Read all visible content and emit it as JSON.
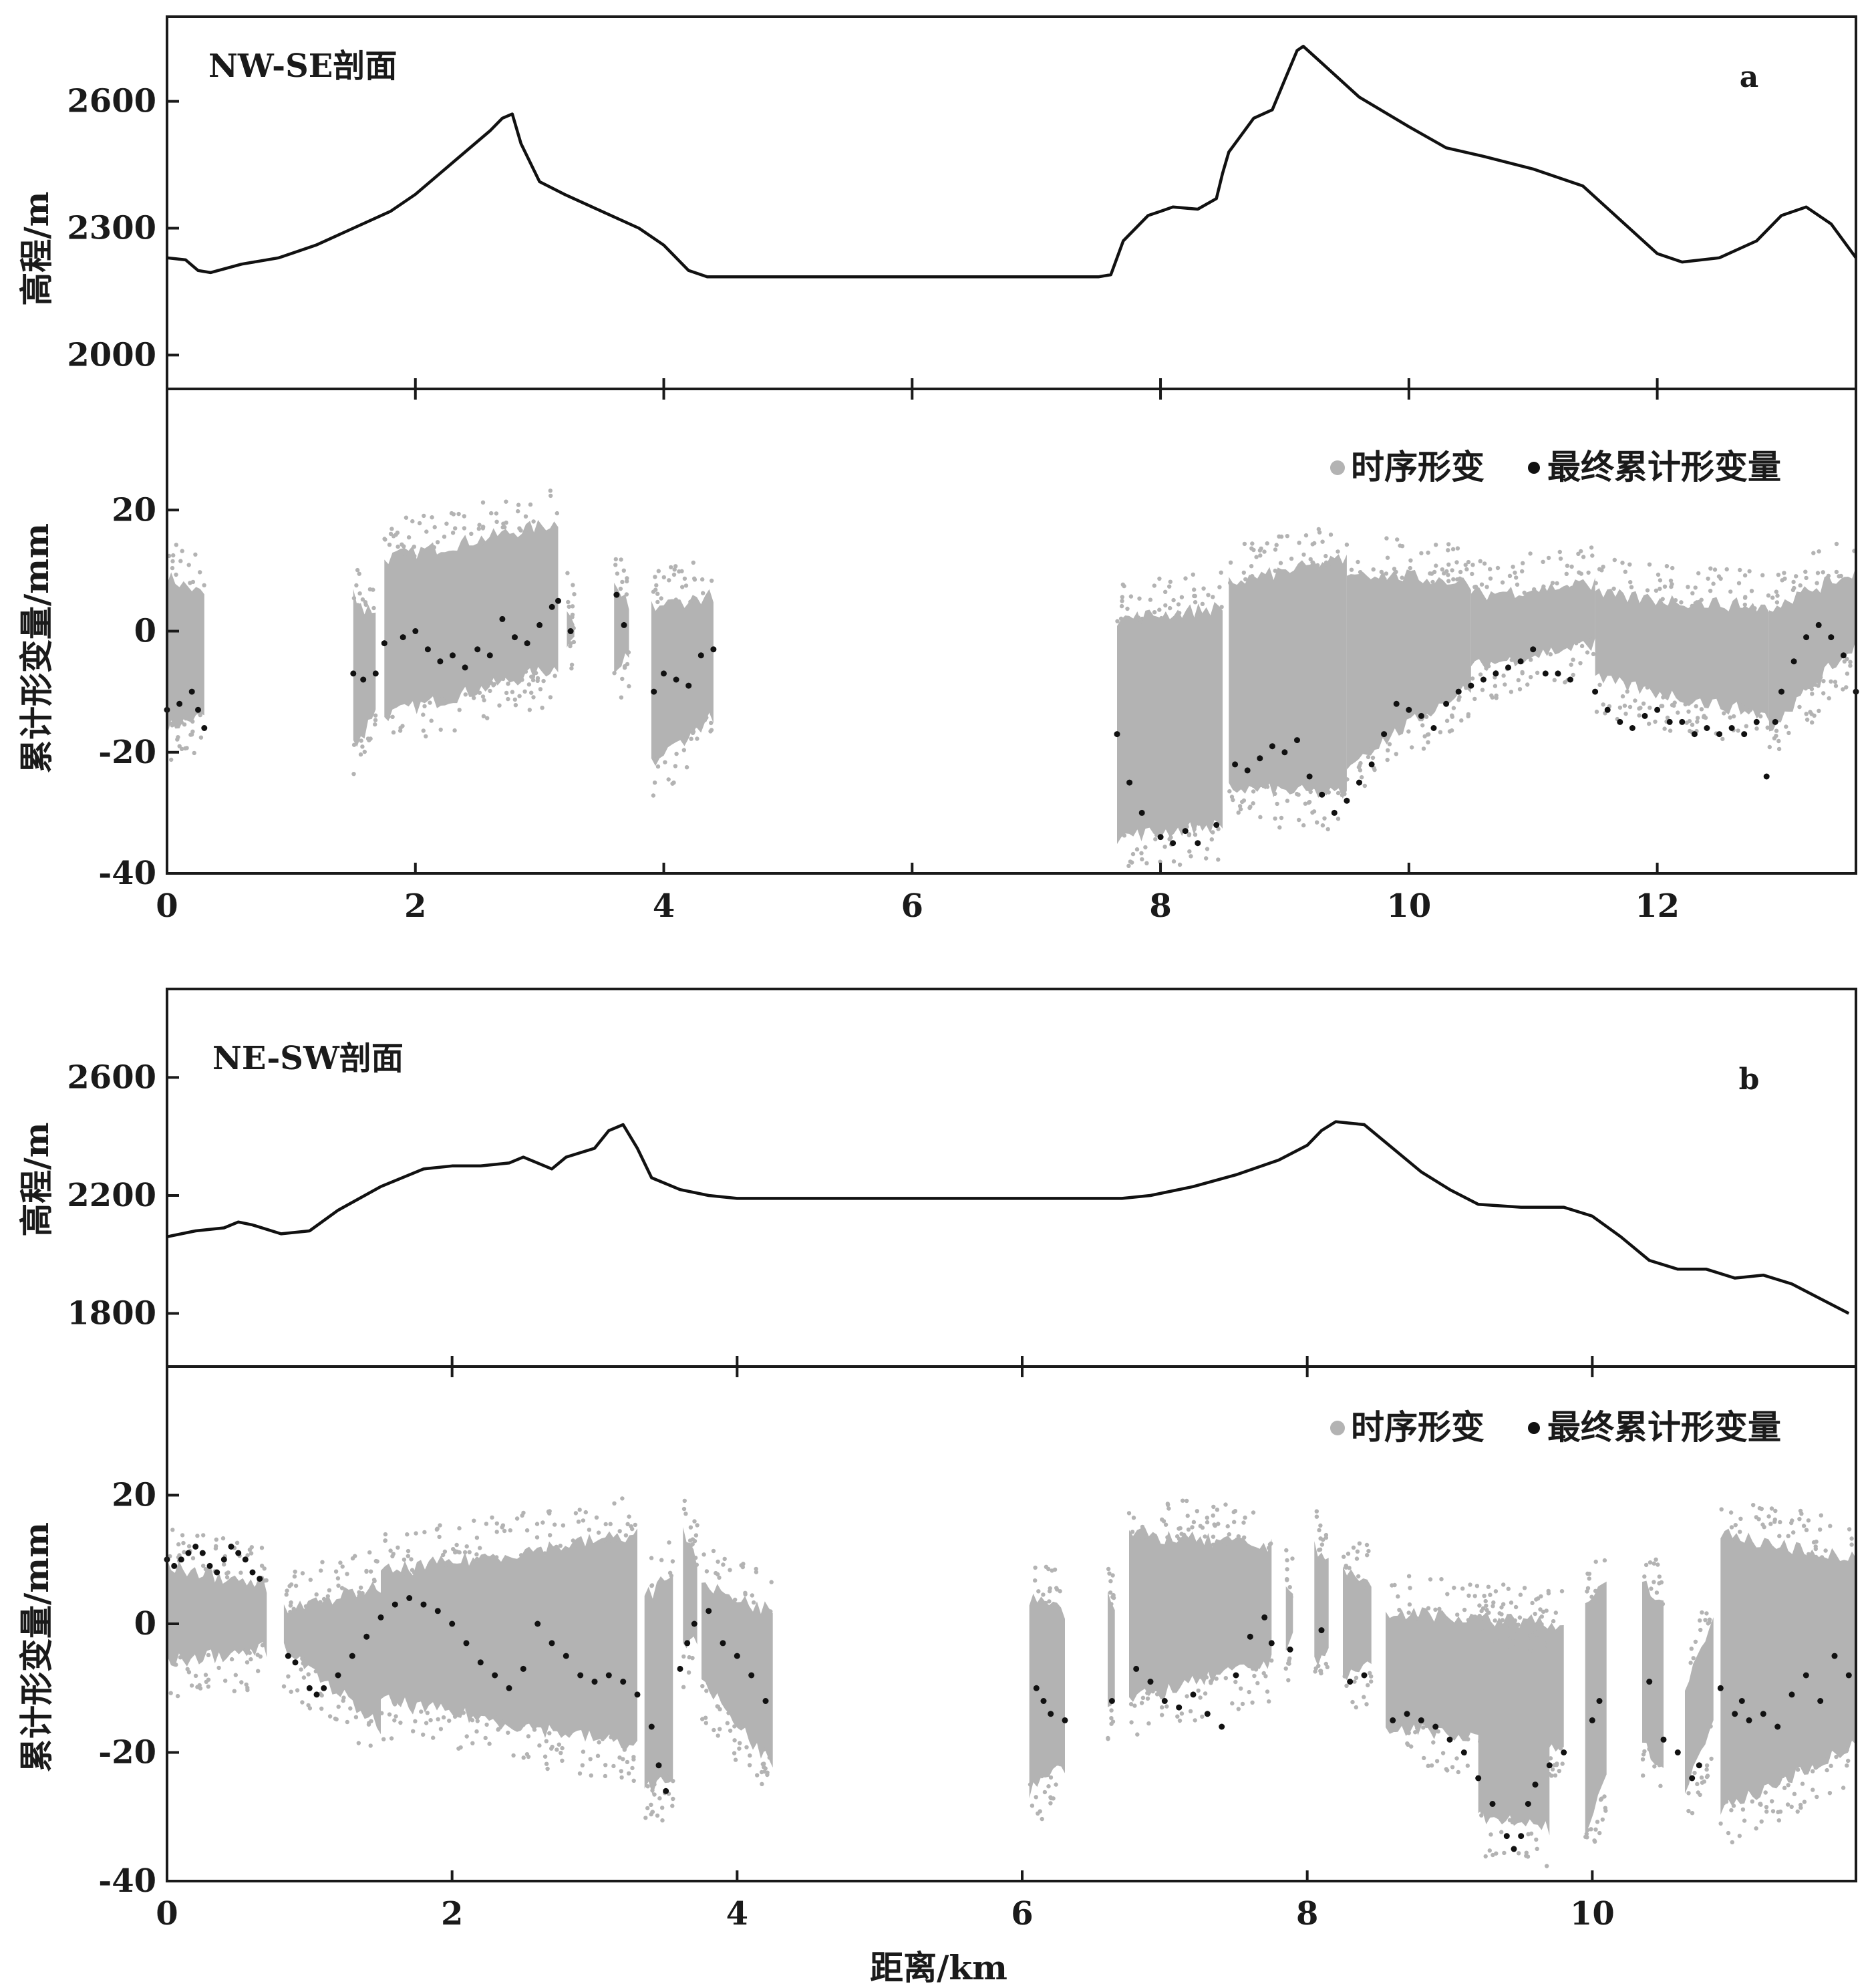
{
  "xlabel": "距离/km",
  "colors": {
    "ts": "#b3b3b3",
    "final": "#111111",
    "line": "#111111"
  },
  "chart_data": [
    {
      "id": "a",
      "letter": "a",
      "title": "NW-SE剖面",
      "type": "line+scatter",
      "xlim": [
        0,
        13.6
      ],
      "xticks": [
        0,
        2,
        4,
        6,
        8,
        10,
        12
      ],
      "elevation": {
        "ylabel": "高程/m",
        "ylim": [
          1920,
          2800
        ],
        "yticks": [
          2000,
          2300,
          2600
        ],
        "x": [
          0,
          0.15,
          0.25,
          0.35,
          0.6,
          0.9,
          1.2,
          1.5,
          1.8,
          2.0,
          2.2,
          2.4,
          2.6,
          2.7,
          2.78,
          2.85,
          3.0,
          3.2,
          3.5,
          3.8,
          4.0,
          4.2,
          4.35,
          4.5,
          6.0,
          7.5,
          7.6,
          7.7,
          7.8,
          7.9,
          8.0,
          8.1,
          8.3,
          8.45,
          8.5,
          8.55,
          8.6,
          8.75,
          8.9,
          9.0,
          9.1,
          9.15,
          9.3,
          9.6,
          10.0,
          10.3,
          10.6,
          11.0,
          11.4,
          11.7,
          12.0,
          12.2,
          12.5,
          12.8,
          13.0,
          13.2,
          13.4,
          13.6
        ],
        "y": [
          2230,
          2225,
          2200,
          2195,
          2215,
          2230,
          2260,
          2300,
          2340,
          2380,
          2430,
          2480,
          2530,
          2560,
          2570,
          2500,
          2410,
          2380,
          2340,
          2300,
          2260,
          2200,
          2185,
          2185,
          2185,
          2185,
          2190,
          2270,
          2300,
          2330,
          2340,
          2350,
          2345,
          2370,
          2430,
          2480,
          2500,
          2560,
          2580,
          2650,
          2720,
          2730,
          2690,
          2610,
          2540,
          2490,
          2470,
          2440,
          2400,
          2320,
          2240,
          2220,
          2230,
          2270,
          2330,
          2350,
          2310,
          2230
        ]
      },
      "deformation": {
        "ylabel": "累计形变量/mm",
        "ylim": [
          -40,
          40
        ],
        "yticks": [
          -40,
          -20,
          0,
          20
        ],
        "legend": {
          "ts_label": "时序形变",
          "final_label": "最终累计形变量"
        },
        "ts_segments": [
          {
            "x": [
              0,
              0.3
            ],
            "ymin": [
              -22,
              -20
            ],
            "ymax": [
              15,
              12
            ]
          },
          {
            "x": [
              1.5,
              1.68
            ],
            "ymin": [
              -25,
              -20
            ],
            "ymax": [
              12,
              8
            ]
          },
          {
            "x": [
              1.75,
              3.15
            ],
            "ymin": [
              -20,
              -12
            ],
            "ymax": [
              18,
              24
            ]
          },
          {
            "x": [
              3.22,
              3.28
            ],
            "ymin": [
              -8,
              -6
            ],
            "ymax": [
              10,
              8
            ]
          },
          {
            "x": [
              3.6,
              3.72
            ],
            "ymin": [
              -12,
              -10
            ],
            "ymax": [
              15,
              10
            ]
          },
          {
            "x": [
              3.9,
              4.4
            ],
            "ymin": [
              -28,
              -20
            ],
            "ymax": [
              10,
              12
            ]
          },
          {
            "x": [
              7.65,
              8.5
            ],
            "ymin": [
              -40,
              -38
            ],
            "ymax": [
              8,
              10
            ]
          },
          {
            "x": [
              8.55,
              9.5
            ],
            "ymin": [
              -32,
              -33
            ],
            "ymax": [
              14,
              18
            ]
          },
          {
            "x": [
              9.5,
              10.5
            ],
            "ymin": [
              -28,
              -15
            ],
            "ymax": [
              16,
              14
            ]
          },
          {
            "x": [
              10.5,
              11.5
            ],
            "ymin": [
              -12,
              -8
            ],
            "ymax": [
              12,
              14
            ]
          },
          {
            "x": [
              11.5,
              12.9
            ],
            "ymin": [
              -14,
              -20
            ],
            "ymax": [
              12,
              10
            ]
          },
          {
            "x": [
              12.9,
              13.6
            ],
            "ymin": [
              -22,
              -8
            ],
            "ymax": [
              10,
              16
            ]
          }
        ],
        "final": {
          "x": [
            0,
            0.1,
            0.2,
            0.25,
            0.3,
            1.5,
            1.58,
            1.68,
            1.75,
            1.9,
            2.0,
            2.1,
            2.2,
            2.3,
            2.4,
            2.5,
            2.6,
            2.7,
            2.8,
            2.9,
            3.0,
            3.1,
            3.15,
            3.25,
            3.62,
            3.68,
            3.92,
            4.0,
            4.1,
            4.2,
            4.3,
            4.4,
            7.65,
            7.75,
            7.85,
            8.0,
            8.1,
            8.2,
            8.3,
            8.45,
            8.6,
            8.7,
            8.8,
            8.9,
            9.0,
            9.1,
            9.2,
            9.3,
            9.4,
            9.5,
            9.6,
            9.7,
            9.8,
            9.9,
            10.0,
            10.1,
            10.2,
            10.3,
            10.4,
            10.5,
            10.6,
            10.7,
            10.8,
            10.9,
            11.0,
            11.1,
            11.2,
            11.3,
            11.5,
            11.6,
            11.7,
            11.8,
            11.9,
            12.0,
            12.1,
            12.2,
            12.3,
            12.4,
            12.5,
            12.6,
            12.7,
            12.8,
            12.88,
            12.95,
            13.0,
            13.1,
            13.2,
            13.3,
            13.4,
            13.5,
            13.6
          ],
          "y": [
            -13,
            -12,
            -10,
            -13,
            -16,
            -7,
            -8,
            -7,
            -2,
            -1,
            0,
            -3,
            -5,
            -4,
            -6,
            -3,
            -4,
            2,
            -1,
            -2,
            1,
            4,
            5,
            0,
            6,
            1,
            -10,
            -7,
            -8,
            -9,
            -4,
            -3,
            -17,
            -25,
            -30,
            -34,
            -35,
            -33,
            -35,
            -32,
            -22,
            -23,
            -21,
            -19,
            -20,
            -18,
            -24,
            -27,
            -30,
            -28,
            -25,
            -22,
            -17,
            -12,
            -13,
            -14,
            -16,
            -12,
            -10,
            -9,
            -8,
            -7,
            -6,
            -5,
            -3,
            -7,
            -7,
            -8,
            -10,
            -13,
            -15,
            -16,
            -14,
            -13,
            -15,
            -15,
            -17,
            -16,
            -17,
            -16,
            -17,
            -15,
            -24,
            -15,
            -10,
            -5,
            -1,
            1,
            -1,
            -4,
            -10
          ]
        }
      }
    },
    {
      "id": "b",
      "letter": "b",
      "title": "NE-SW剖面",
      "type": "line+scatter",
      "xlim": [
        0,
        11.85
      ],
      "xticks": [
        0,
        2,
        4,
        6,
        8,
        10
      ],
      "elevation": {
        "ylabel": "高程/m",
        "ylim": [
          1620,
          2900
        ],
        "yticks": [
          1800,
          2200,
          2600
        ],
        "x": [
          0,
          0.2,
          0.4,
          0.5,
          0.6,
          0.8,
          1.0,
          1.2,
          1.5,
          1.8,
          2.0,
          2.2,
          2.4,
          2.5,
          2.6,
          2.7,
          2.8,
          3.0,
          3.1,
          3.2,
          3.3,
          3.4,
          3.6,
          3.8,
          4.0,
          4.3,
          5.0,
          6.0,
          6.7,
          6.9,
          7.2,
          7.5,
          7.8,
          8.0,
          8.1,
          8.2,
          8.4,
          8.6,
          8.8,
          9.0,
          9.2,
          9.5,
          9.8,
          10.0,
          10.2,
          10.4,
          10.6,
          10.8,
          11.0,
          11.2,
          11.4,
          11.6,
          11.8
        ],
        "y": [
          2060,
          2080,
          2090,
          2110,
          2100,
          2070,
          2080,
          2150,
          2230,
          2290,
          2300,
          2300,
          2310,
          2330,
          2310,
          2290,
          2330,
          2360,
          2420,
          2440,
          2360,
          2260,
          2220,
          2200,
          2190,
          2190,
          2190,
          2190,
          2190,
          2200,
          2230,
          2270,
          2320,
          2370,
          2420,
          2450,
          2440,
          2360,
          2280,
          2220,
          2170,
          2160,
          2160,
          2130,
          2060,
          1980,
          1950,
          1950,
          1920,
          1930,
          1900,
          1850,
          1800
        ]
      },
      "deformation": {
        "ylabel": "累计形变量/mm",
        "ylim": [
          -40,
          40
        ],
        "yticks": [
          -40,
          -20,
          0,
          20
        ],
        "legend": {
          "ts_label": "时序形变",
          "final_label": "最终累计形变量"
        },
        "ts_segments": [
          {
            "x": [
              0,
              0.7
            ],
            "ymin": [
              -12,
              -10
            ],
            "ymax": [
              15,
              12
            ]
          },
          {
            "x": [
              0.82,
              1.5
            ],
            "ymin": [
              -10,
              -22
            ],
            "ymax": [
              8,
              12
            ]
          },
          {
            "x": [
              1.5,
              3.3
            ],
            "ymin": [
              -18,
              -25
            ],
            "ymax": [
              14,
              20
            ]
          },
          {
            "x": [
              3.35,
              3.55
            ],
            "ymin": [
              -32,
              -30
            ],
            "ymax": [
              10,
              14
            ]
          },
          {
            "x": [
              3.62,
              3.72
            ],
            "ymin": [
              -10,
              -8
            ],
            "ymax": [
              20,
              16
            ]
          },
          {
            "x": [
              3.75,
              4.25
            ],
            "ymin": [
              -15,
              -28
            ],
            "ymax": [
              12,
              8
            ]
          },
          {
            "x": [
              6.05,
              6.3
            ],
            "ymin": [
              -32,
              -28
            ],
            "ymax": [
              10,
              8
            ]
          },
          {
            "x": [
              6.6,
              6.65
            ],
            "ymin": [
              -20,
              -18
            ],
            "ymax": [
              10,
              8
            ]
          },
          {
            "x": [
              6.75,
              7.75
            ],
            "ymin": [
              -18,
              -12
            ],
            "ymax": [
              20,
              18
            ]
          },
          {
            "x": [
              7.85,
              7.9
            ],
            "ymin": [
              -10,
              -8
            ],
            "ymax": [
              12,
              10
            ]
          },
          {
            "x": [
              8.05,
              8.15
            ],
            "ymin": [
              -12,
              -10
            ],
            "ymax": [
              18,
              16
            ]
          },
          {
            "x": [
              8.25,
              8.45
            ],
            "ymin": [
              -15,
              -12
            ],
            "ymax": [
              14,
              12
            ]
          },
          {
            "x": [
              8.55,
              9.8
            ],
            "ymin": [
              -22,
              -25
            ],
            "ymax": [
              8,
              6
            ]
          },
          {
            "x": [
              9.2,
              9.7
            ],
            "ymin": [
              -36,
              -38
            ],
            "ymax": [
              4,
              2
            ]
          },
          {
            "x": [
              9.95,
              10.1
            ],
            "ymin": [
              -38,
              -30
            ],
            "ymax": [
              10,
              12
            ]
          },
          {
            "x": [
              10.35,
              10.5
            ],
            "ymin": [
              -25,
              -28
            ],
            "ymax": [
              12,
              10
            ]
          },
          {
            "x": [
              10.65,
              10.85
            ],
            "ymin": [
              -32,
              -22
            ],
            "ymax": [
              -4,
              6
            ]
          },
          {
            "x": [
              10.9,
              11.85
            ],
            "ymin": [
              -35,
              -25
            ],
            "ymax": [
              20,
              16
            ]
          }
        ],
        "final": {
          "x": [
            0,
            0.05,
            0.1,
            0.15,
            0.2,
            0.25,
            0.3,
            0.35,
            0.4,
            0.45,
            0.5,
            0.55,
            0.6,
            0.65,
            0.85,
            0.9,
            1.0,
            1.05,
            1.1,
            1.2,
            1.3,
            1.4,
            1.5,
            1.6,
            1.7,
            1.8,
            1.9,
            2.0,
            2.1,
            2.2,
            2.3,
            2.4,
            2.5,
            2.6,
            2.7,
            2.8,
            2.9,
            3.0,
            3.1,
            3.2,
            3.3,
            3.4,
            3.45,
            3.5,
            3.6,
            3.65,
            3.7,
            3.8,
            3.9,
            4.0,
            4.1,
            4.2,
            6.1,
            6.15,
            6.2,
            6.3,
            6.63,
            6.8,
            6.9,
            7.0,
            7.1,
            7.2,
            7.3,
            7.4,
            7.5,
            7.6,
            7.7,
            7.75,
            7.88,
            8.1,
            8.3,
            8.4,
            8.6,
            8.7,
            8.8,
            8.9,
            9.0,
            9.1,
            9.2,
            9.3,
            9.4,
            9.45,
            9.5,
            9.55,
            9.6,
            9.7,
            9.8,
            10.0,
            10.05,
            10.4,
            10.5,
            10.6,
            10.7,
            10.75,
            10.9,
            11.0,
            11.05,
            11.1,
            11.2,
            11.3,
            11.4,
            11.5,
            11.6,
            11.7,
            11.8
          ],
          "y": [
            10,
            9,
            10,
            11,
            12,
            11,
            9,
            8,
            10,
            12,
            11,
            10,
            8,
            7,
            -5,
            -6,
            -10,
            -11,
            -10,
            -8,
            -5,
            -2,
            1,
            3,
            4,
            3,
            2,
            0,
            -3,
            -6,
            -8,
            -10,
            -7,
            0,
            -3,
            -5,
            -8,
            -9,
            -8,
            -9,
            -11,
            -16,
            -22,
            -26,
            -7,
            -3,
            0,
            2,
            -3,
            -5,
            -8,
            -12,
            -10,
            -12,
            -14,
            -15,
            -12,
            -7,
            -9,
            -12,
            -13,
            -11,
            -14,
            -16,
            -8,
            -2,
            1,
            -3,
            -4,
            -1,
            -9,
            -8,
            -15,
            -14,
            -15,
            -16,
            -18,
            -20,
            -24,
            -28,
            -33,
            -35,
            -33,
            -28,
            -25,
            -22,
            -20,
            -15,
            -12,
            -9,
            -18,
            -20,
            -24,
            -22,
            -10,
            -14,
            -12,
            -15,
            -14,
            -16,
            -11,
            -8,
            -12,
            -5,
            -8
          ]
        }
      }
    }
  ]
}
